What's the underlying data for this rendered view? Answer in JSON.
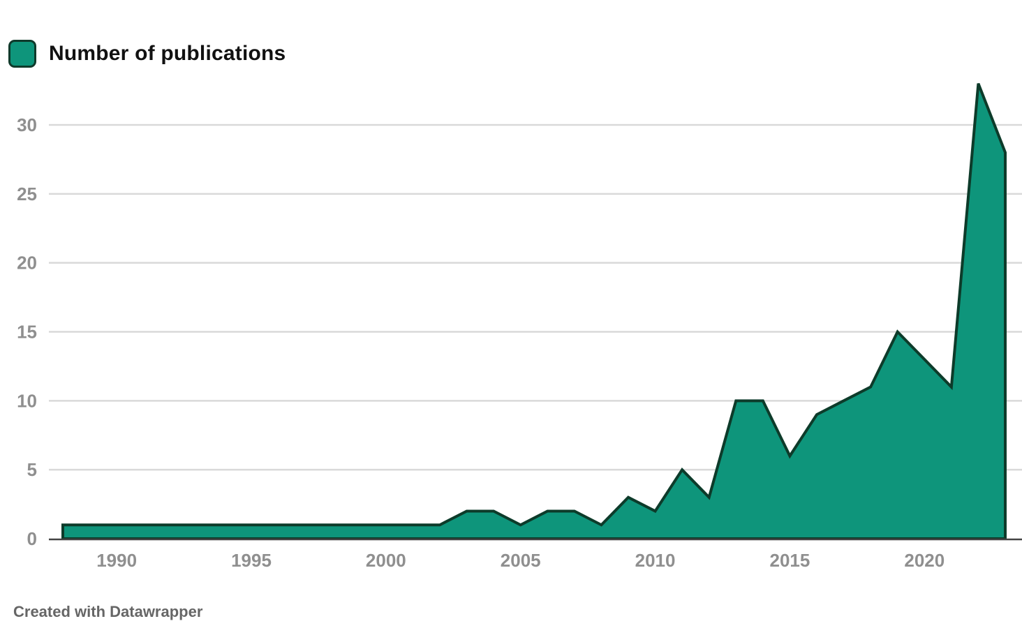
{
  "colors": {
    "area_fill": "#0e957b",
    "area_stroke": "#0d3b2a",
    "gridline": "#d9d9d9",
    "baseline": "#444444",
    "tick_label": "#8f8f8f",
    "footer": "#666666"
  },
  "footer": {
    "credit": "Created with Datawrapper"
  },
  "chart_data": {
    "type": "area",
    "title": "",
    "xlabel": "",
    "ylabel": "",
    "legend": {
      "entries": [
        "Number of publications"
      ],
      "placement": "top-left"
    },
    "x": [
      1988,
      1989,
      1990,
      1991,
      1992,
      1993,
      1994,
      1995,
      1996,
      1997,
      1998,
      1999,
      2000,
      2001,
      2002,
      2003,
      2004,
      2005,
      2006,
      2007,
      2008,
      2009,
      2010,
      2011,
      2012,
      2013,
      2014,
      2015,
      2016,
      2017,
      2018,
      2019,
      2020,
      2021,
      2022,
      2023
    ],
    "series": [
      {
        "name": "Number of publications",
        "values": [
          1,
          1,
          1,
          1,
          1,
          1,
          1,
          1,
          1,
          1,
          1,
          1,
          1,
          1,
          1,
          2,
          2,
          1,
          2,
          2,
          1,
          3,
          2,
          5,
          3,
          10,
          10,
          6,
          9,
          10,
          11,
          15,
          13,
          11,
          33,
          28
        ]
      }
    ],
    "xlim": [
      1988,
      2023
    ],
    "ylim": [
      0,
      30
    ],
    "x_ticks": [
      1990,
      1995,
      2000,
      2005,
      2010,
      2015,
      2020
    ],
    "x_tick_labels": [
      "1990",
      "1995",
      "2000",
      "2005",
      "2010",
      "2015",
      "2020"
    ],
    "y_ticks": [
      0,
      5,
      10,
      15,
      20,
      25,
      30
    ],
    "y_tick_labels": [
      "0",
      "5",
      "10",
      "15",
      "20",
      "25",
      "30"
    ],
    "grid": true
  }
}
